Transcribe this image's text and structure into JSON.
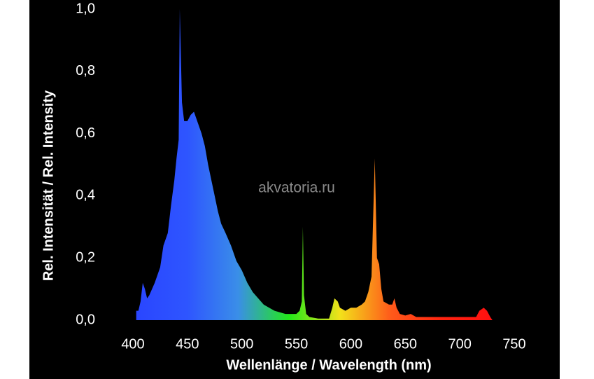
{
  "chart_data": {
    "type": "area",
    "watermark": "akvatoria.ru",
    "x_label": "Wellenlänge / Wavelength (nm)",
    "y_label": "Rel. Intensität / Rel. Intensity",
    "x": [
      403,
      405,
      407,
      409,
      411,
      413,
      415,
      420,
      425,
      428,
      432,
      435,
      438,
      440,
      442,
      443,
      445,
      447,
      450,
      453,
      456,
      460,
      463,
      466,
      469,
      472,
      475,
      478,
      481,
      485,
      490,
      495,
      500,
      505,
      510,
      515,
      520,
      525,
      530,
      535,
      540,
      545,
      550,
      553,
      555,
      556,
      557,
      559,
      562,
      570,
      580,
      583,
      585,
      588,
      590,
      595,
      600,
      605,
      610,
      613,
      616,
      619,
      622,
      624,
      626,
      628,
      630,
      635,
      638,
      640,
      642,
      645,
      650,
      655,
      660,
      670,
      680,
      690,
      715,
      718,
      722,
      725,
      728,
      730
    ],
    "values": [
      0.03,
      0.03,
      0.06,
      0.12,
      0.1,
      0.07,
      0.08,
      0.12,
      0.17,
      0.24,
      0.28,
      0.37,
      0.45,
      0.52,
      0.58,
      1.0,
      0.7,
      0.64,
      0.64,
      0.66,
      0.67,
      0.63,
      0.6,
      0.56,
      0.5,
      0.45,
      0.4,
      0.35,
      0.31,
      0.28,
      0.24,
      0.19,
      0.16,
      0.12,
      0.09,
      0.07,
      0.05,
      0.04,
      0.03,
      0.025,
      0.02,
      0.02,
      0.02,
      0.03,
      0.06,
      0.3,
      0.08,
      0.02,
      0.01,
      0.005,
      0.005,
      0.04,
      0.07,
      0.06,
      0.04,
      0.03,
      0.04,
      0.04,
      0.05,
      0.06,
      0.09,
      0.14,
      0.52,
      0.2,
      0.18,
      0.1,
      0.06,
      0.05,
      0.05,
      0.07,
      0.04,
      0.02,
      0.015,
      0.02,
      0.01,
      0.01,
      0.01,
      0.01,
      0.01,
      0.03,
      0.04,
      0.03,
      0.01,
      0
    ],
    "colors": [
      "#2a46ff",
      "#2e55ff",
      "#3a8ee8",
      "#22e81a",
      "#f2e21a",
      "#ff5a1a",
      "#ff2410",
      "#ff1010"
    ],
    "background": "#000000",
    "xlim": [
      400,
      750
    ],
    "xticks": [
      400,
      450,
      500,
      550,
      600,
      650,
      700,
      750
    ],
    "ylim": [
      0,
      1
    ],
    "yticks": [
      {
        "value": 0,
        "label": "0,0"
      },
      {
        "value": 0.2,
        "label": "0,2"
      },
      {
        "value": 0.4,
        "label": "0,4"
      },
      {
        "value": 0.6,
        "label": "0,6"
      },
      {
        "value": 0.8,
        "label": "0,8"
      },
      {
        "value": 1,
        "label": "1,0"
      }
    ],
    "grid": false
  }
}
